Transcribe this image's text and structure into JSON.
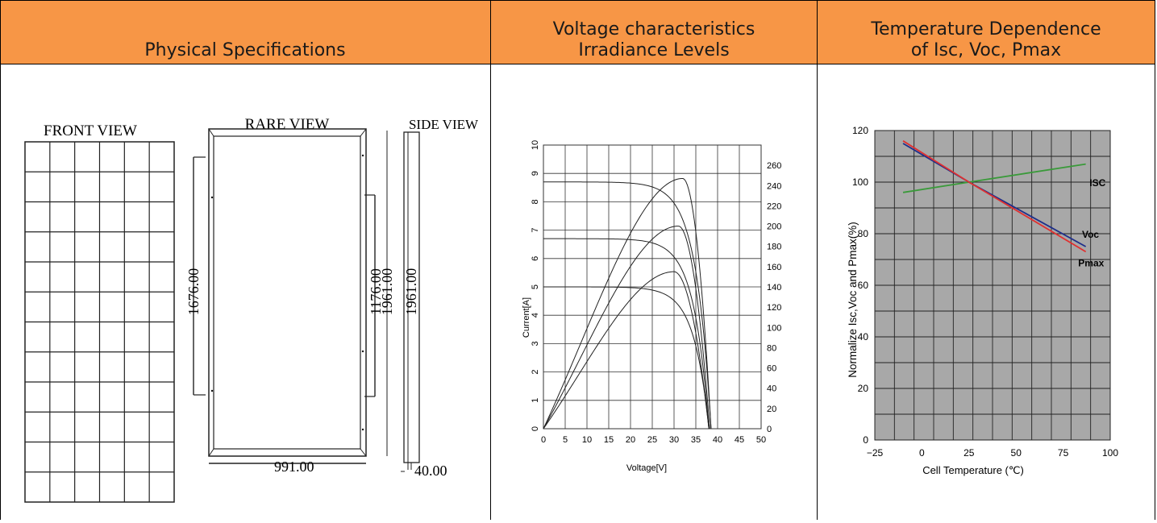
{
  "headers": {
    "physical": "Physical Specifications",
    "voltage_line1": "Voltage characteristics",
    "voltage_line2": "Irradiance Levels",
    "temp_line1": "Temperature Dependence",
    "temp_line2": "of Isc, Voc, Pmax"
  },
  "colors": {
    "header_bg": "#f79646",
    "isc": "#3a9a3a",
    "voc": "#1f2f8a",
    "pmax": "#e03030",
    "grid_bg": "#a8a8a8"
  },
  "physical": {
    "front_view": "FRONT VIEW",
    "rare_view": "RARE VIEW",
    "side_view": "SIDE VIEW",
    "dim_1676": "1676.00",
    "dim_1176": "1176.00",
    "dim_1961_a": "1961.00",
    "dim_1961_b": "1961.00",
    "dim_991": "991.00",
    "dim_40": "40.00"
  },
  "chart_data": [
    {
      "type": "line",
      "title": "",
      "xlabel": "Voltage[V]",
      "ylabel": "Current[A]",
      "xlim": [
        0,
        50
      ],
      "ylim": [
        0,
        10
      ],
      "y2lim": [
        0,
        280
      ],
      "x_ticks": [
        "0",
        "5",
        "10",
        "15",
        "20",
        "25",
        "30",
        "35",
        "40",
        "45",
        "50"
      ],
      "y_ticks": [
        "0",
        "1",
        "2",
        "3",
        "4",
        "5",
        "6",
        "7",
        "8",
        "9",
        "10"
      ],
      "y2_ticks": [
        "0",
        "20",
        "40",
        "60",
        "80",
        "100",
        "120",
        "140",
        "160",
        "180",
        "200",
        "220",
        "240",
        "260"
      ],
      "series": [
        {
          "kind": "iv",
          "isc": 8.7,
          "voc": 38.5,
          "vmp": 31,
          "imp": 8.1
        },
        {
          "kind": "iv",
          "isc": 6.7,
          "voc": 38.0,
          "vmp": 30,
          "imp": 6.3
        },
        {
          "kind": "iv",
          "isc": 5.0,
          "voc": 38.0,
          "vmp": 30,
          "imp": 4.7
        },
        {
          "kind": "pv",
          "pmax": 247,
          "vmp": 32,
          "voc": 38.5
        },
        {
          "kind": "pv",
          "pmax": 200,
          "vmp": 31,
          "voc": 38.2
        },
        {
          "kind": "pv",
          "pmax": 155,
          "vmp": 30,
          "voc": 38.0
        }
      ]
    },
    {
      "type": "line",
      "title": "",
      "xlabel": "Cell Temperature (℃)",
      "ylabel": "Normalize Isc,Voc and Pmax(%)",
      "xlim": [
        -25,
        100
      ],
      "ylim": [
        0,
        120
      ],
      "x_ticks": [
        "−25",
        "0",
        "25",
        "50",
        "75",
        "100"
      ],
      "y_ticks": [
        "0",
        "20",
        "40",
        "60",
        "80",
        "100",
        "120"
      ],
      "series": [
        {
          "name": "ISC",
          "x": [
            -10,
            25,
            87
          ],
          "y": [
            96,
            100,
            107
          ]
        },
        {
          "name": "Voc",
          "x": [
            -10,
            25,
            87
          ],
          "y": [
            115,
            100,
            75
          ]
        },
        {
          "name": "Pmax",
          "x": [
            -10,
            25,
            87
          ],
          "y": [
            116,
            100,
            73
          ]
        }
      ]
    }
  ]
}
